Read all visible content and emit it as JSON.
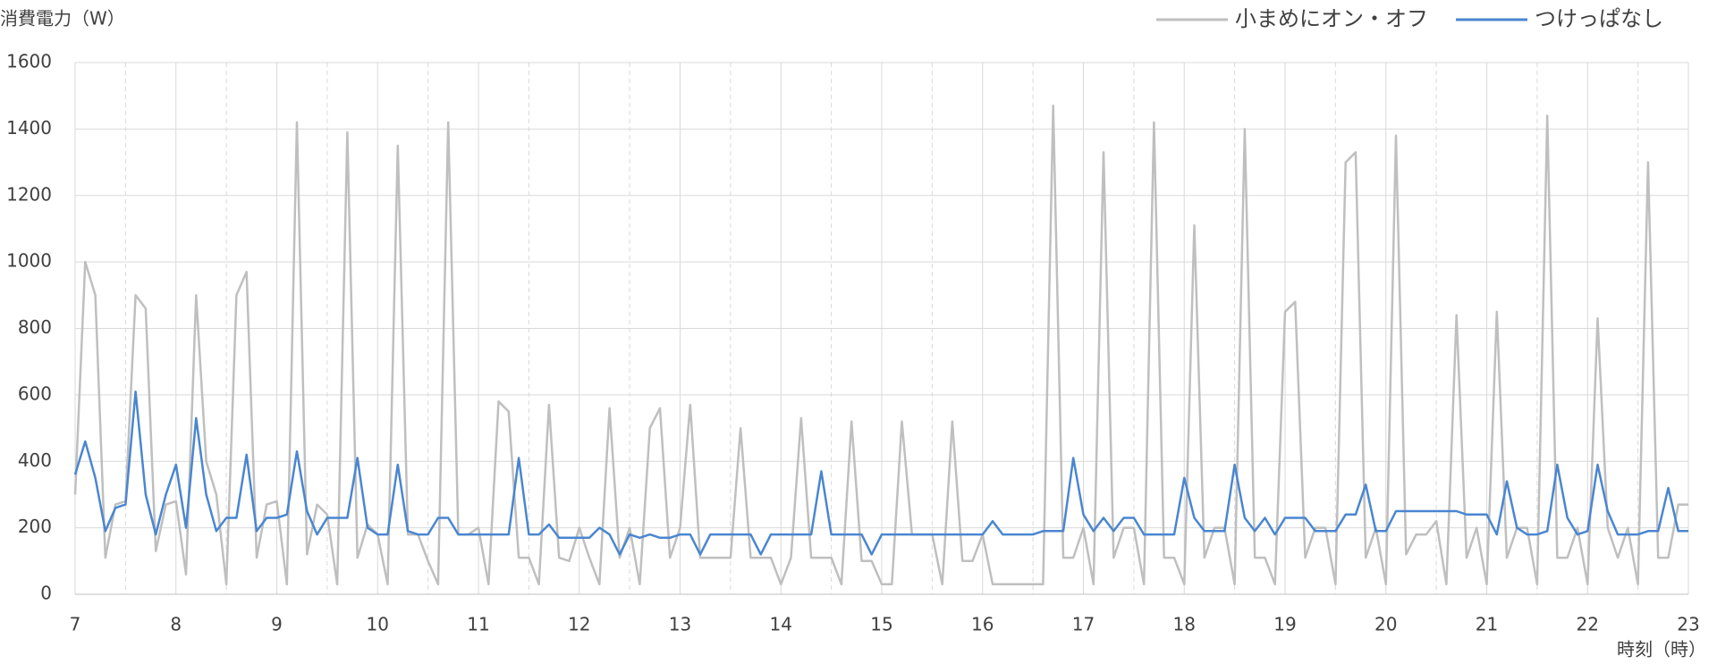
{
  "chart_data": {
    "type": "line",
    "y_label": "消費電力（W）",
    "x_label": "時刻（時）",
    "x": [
      7.0,
      7.1,
      7.2,
      7.3,
      7.4,
      7.5,
      7.6,
      7.7,
      7.8,
      7.9,
      8.0,
      8.1,
      8.2,
      8.3,
      8.4,
      8.5,
      8.6,
      8.7,
      8.8,
      8.9,
      9.0,
      9.1,
      9.2,
      9.3,
      9.4,
      9.5,
      9.6,
      9.7,
      9.8,
      9.9,
      10.0,
      10.1,
      10.2,
      10.3,
      10.4,
      10.5,
      10.6,
      10.7,
      10.8,
      10.9,
      11.0,
      11.1,
      11.2,
      11.3,
      11.4,
      11.5,
      11.6,
      11.7,
      11.8,
      11.9,
      12.0,
      12.1,
      12.2,
      12.3,
      12.4,
      12.5,
      12.6,
      12.7,
      12.8,
      12.9,
      13.0,
      13.1,
      13.2,
      13.3,
      13.4,
      13.5,
      13.6,
      13.7,
      13.8,
      13.9,
      14.0,
      14.1,
      14.2,
      14.3,
      14.4,
      14.5,
      14.6,
      14.7,
      14.8,
      14.9,
      15.0,
      15.1,
      15.2,
      15.3,
      15.4,
      15.5,
      15.6,
      15.7,
      15.8,
      15.9,
      16.0,
      16.1,
      16.2,
      16.3,
      16.4,
      16.5,
      16.6,
      16.7,
      16.8,
      16.9,
      17.0,
      17.1,
      17.2,
      17.3,
      17.4,
      17.5,
      17.6,
      17.7,
      17.8,
      17.9,
      18.0,
      18.1,
      18.2,
      18.3,
      18.4,
      18.5,
      18.6,
      18.7,
      18.8,
      18.9,
      19.0,
      19.1,
      19.2,
      19.3,
      19.4,
      19.5,
      19.6,
      19.7,
      19.8,
      19.9,
      20.0,
      20.1,
      20.2,
      20.3,
      20.4,
      20.5,
      20.6,
      20.7,
      20.8,
      20.9,
      21.0,
      21.1,
      21.2,
      21.3,
      21.4,
      21.5,
      21.6,
      21.7,
      21.8,
      21.9,
      22.0,
      22.1,
      22.2,
      22.3,
      22.4,
      22.5,
      22.6,
      22.7,
      22.8,
      22.9,
      23.0
    ],
    "series": [
      {
        "name": "小まめにオン・オフ",
        "color": "#bfbfbf",
        "values": [
          300,
          1000,
          900,
          110,
          270,
          280,
          900,
          860,
          130,
          270,
          280,
          60,
          900,
          400,
          300,
          30,
          900,
          970,
          110,
          270,
          280,
          30,
          1420,
          120,
          270,
          240,
          30,
          1390,
          110,
          210,
          180,
          30,
          1350,
          180,
          180,
          100,
          30,
          1420,
          180,
          180,
          200,
          30,
          580,
          550,
          110,
          110,
          30,
          570,
          110,
          100,
          200,
          110,
          30,
          560,
          110,
          200,
          30,
          500,
          560,
          110,
          200,
          570,
          110,
          110,
          110,
          110,
          500,
          110,
          110,
          110,
          30,
          110,
          530,
          110,
          110,
          110,
          30,
          520,
          100,
          100,
          30,
          30,
          520,
          180,
          180,
          180,
          30,
          520,
          100,
          100,
          180,
          30,
          30,
          30,
          30,
          30,
          30,
          1470,
          110,
          110,
          200,
          30,
          1330,
          110,
          200,
          200,
          30,
          1420,
          110,
          110,
          30,
          1110,
          110,
          200,
          200,
          30,
          1400,
          110,
          110,
          30,
          850,
          880,
          110,
          200,
          200,
          30,
          1300,
          1330,
          110,
          200,
          30,
          1380,
          120,
          180,
          180,
          220,
          30,
          840,
          110,
          200,
          30,
          850,
          110,
          200,
          200,
          30,
          1440,
          110,
          110,
          200,
          30,
          830,
          200,
          110,
          200,
          30,
          1300,
          110,
          110,
          270,
          270
        ]
      },
      {
        "name": "つけっぱなし",
        "color": "#4a86d0",
        "values": [
          360,
          460,
          350,
          190,
          260,
          270,
          610,
          300,
          180,
          300,
          390,
          200,
          530,
          300,
          190,
          230,
          230,
          420,
          190,
          230,
          230,
          240,
          430,
          250,
          180,
          230,
          230,
          230,
          410,
          200,
          180,
          180,
          390,
          190,
          180,
          180,
          230,
          230,
          180,
          180,
          180,
          180,
          180,
          180,
          410,
          180,
          180,
          210,
          170,
          170,
          170,
          170,
          200,
          180,
          120,
          180,
          170,
          180,
          170,
          170,
          180,
          180,
          120,
          180,
          180,
          180,
          180,
          180,
          120,
          180,
          180,
          180,
          180,
          180,
          370,
          180,
          180,
          180,
          180,
          120,
          180,
          180,
          180,
          180,
          180,
          180,
          180,
          180,
          180,
          180,
          180,
          220,
          180,
          180,
          180,
          180,
          190,
          190,
          190,
          410,
          240,
          190,
          230,
          190,
          230,
          230,
          180,
          180,
          180,
          180,
          350,
          230,
          190,
          190,
          190,
          390,
          230,
          190,
          230,
          180,
          230,
          230,
          230,
          190,
          190,
          190,
          240,
          240,
          330,
          190,
          190,
          250,
          250,
          250,
          250,
          250,
          250,
          250,
          240,
          240,
          240,
          180,
          340,
          200,
          180,
          180,
          190,
          390,
          230,
          180,
          190,
          390,
          250,
          180,
          180,
          180,
          190,
          190,
          320,
          190,
          190
        ]
      }
    ],
    "xlim": [
      7,
      23
    ],
    "xticks": [
      7,
      8,
      9,
      10,
      11,
      12,
      13,
      14,
      15,
      16,
      17,
      18,
      19,
      20,
      21,
      22,
      23
    ],
    "ylim": [
      0,
      1600
    ],
    "yticks": [
      0,
      200,
      400,
      600,
      800,
      1000,
      1200,
      1400,
      1600
    ],
    "grid": true,
    "legend": "top-right"
  }
}
